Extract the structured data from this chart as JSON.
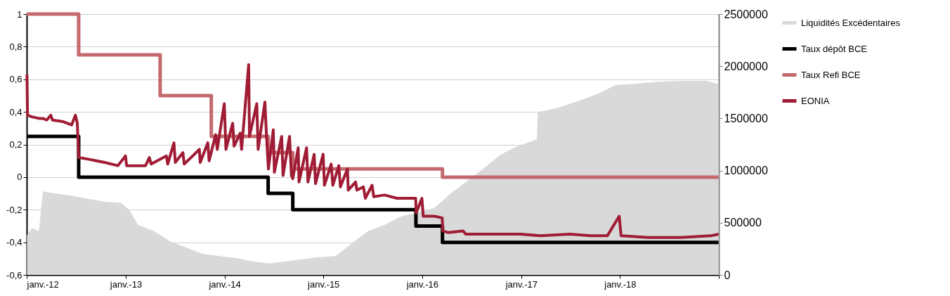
{
  "chart_data": {
    "type": "line",
    "xlim": [
      "2012-01-01",
      "2019-01-01"
    ],
    "xticks": [
      {
        "value": "2012-01-01",
        "label": "janv.-12"
      },
      {
        "value": "2013-01-01",
        "label": "janv.-13"
      },
      {
        "value": "2014-01-01",
        "label": "janv.-14"
      },
      {
        "value": "2015-01-01",
        "label": "janv.-15"
      },
      {
        "value": "2016-01-01",
        "label": "janv.-16"
      },
      {
        "value": "2017-01-01",
        "label": "janv.-17"
      },
      {
        "value": "2018-01-01",
        "label": "janv.-18"
      },
      {
        "value": "2019-01-01",
        "label": null
      }
    ],
    "ylim": [
      -0.6,
      1
    ],
    "yticks": [
      {
        "value": -0.6,
        "label": "-0,6"
      },
      {
        "value": -0.4,
        "label": "-0,4"
      },
      {
        "value": -0.2,
        "label": "-0,2"
      },
      0,
      {
        "value": 0.2,
        "label": "0,2"
      },
      {
        "value": 0.4,
        "label": "0,4"
      },
      {
        "value": 0.6,
        "label": "0,6"
      },
      {
        "value": 0.8,
        "label": "0,8"
      },
      1
    ],
    "y2lim": [
      0,
      2500000
    ],
    "y2ticks": [
      0,
      500000,
      1000000,
      1500000,
      2000000,
      2500000
    ],
    "grid": "y",
    "legend": "right",
    "series": [
      {
        "name": "Liquidités Excédentaires",
        "type": "area",
        "axis": "y2",
        "color": "#d9d9d9",
        "x": [
          "2012-01-02",
          "2012-01-20",
          "2012-02-15",
          "2012-03-01",
          "2012-04-15",
          "2012-06-15",
          "2012-08-15",
          "2012-10-15",
          "2012-12-15",
          "2013-01-15",
          "2013-02-15",
          "2013-04-15",
          "2013-06-15",
          "2013-08-15",
          "2013-10-15",
          "2013-12-15",
          "2014-02-15",
          "2014-04-15",
          "2014-06-15",
          "2014-08-15",
          "2014-10-15",
          "2014-12-15",
          "2015-02-15",
          "2015-04-15",
          "2015-06-15",
          "2015-08-15",
          "2015-10-15",
          "2015-12-15",
          "2016-02-15",
          "2016-04-15",
          "2016-06-15",
          "2016-08-15",
          "2016-10-15",
          "2016-12-15",
          "2017-02-28",
          "2017-03-03",
          "2017-05-15",
          "2017-08-15",
          "2017-10-15",
          "2017-12-15",
          "2018-02-15",
          "2018-05-15",
          "2018-08-15",
          "2018-11-15",
          "2018-12-31"
        ],
        "values": [
          380000,
          450000,
          420000,
          800000,
          780000,
          760000,
          730000,
          700000,
          690000,
          620000,
          480000,
          420000,
          320000,
          260000,
          200000,
          180000,
          160000,
          130000,
          110000,
          130000,
          150000,
          170000,
          180000,
          300000,
          420000,
          480000,
          560000,
          600000,
          640000,
          780000,
          900000,
          1020000,
          1150000,
          1230000,
          1300000,
          1560000,
          1600000,
          1680000,
          1740000,
          1820000,
          1830000,
          1850000,
          1860000,
          1860000,
          1830000
        ]
      },
      {
        "name": "Taux dépôt BCE",
        "type": "step",
        "color": "#000000",
        "x": [
          "2012-01-01",
          "2012-07-11",
          "2014-06-11",
          "2014-09-10",
          "2015-12-09",
          "2016-03-16",
          "2018-12-31"
        ],
        "values": [
          0.25,
          0,
          -0.1,
          -0.2,
          -0.3,
          -0.4,
          -0.4
        ]
      },
      {
        "name": "Taux Refi BCE",
        "type": "step",
        "color": "#c46a6e",
        "x": [
          "2012-01-01",
          "2012-07-11",
          "2013-05-08",
          "2013-11-13",
          "2014-06-11",
          "2014-09-10",
          "2016-03-16",
          "2018-12-31"
        ],
        "values": [
          1,
          0.75,
          0.5,
          0.25,
          0.15,
          0.05,
          0,
          0
        ]
      },
      {
        "name": "EONIA",
        "color": "#a01c35",
        "x": [
          "2012-01-02",
          "2012-01-04",
          "2012-01-20",
          "2012-02-15",
          "2012-03-01",
          "2012-03-15",
          "2012-03-30",
          "2012-04-05",
          "2012-05-15",
          "2012-06-15",
          "2012-06-29",
          "2012-07-06",
          "2012-07-11",
          "2012-08-15",
          "2012-09-15",
          "2012-10-15",
          "2012-12-03",
          "2012-12-31",
          "2013-01-04",
          "2013-03-15",
          "2013-03-29",
          "2013-04-05",
          "2013-05-31",
          "2013-06-05",
          "2013-06-28",
          "2013-07-03",
          "2013-07-31",
          "2013-08-05",
          "2013-09-30",
          "2013-10-03",
          "2013-10-31",
          "2013-11-05",
          "2013-11-29",
          "2013-12-05",
          "2013-12-31",
          "2014-01-06",
          "2014-01-31",
          "2014-02-05",
          "2014-02-28",
          "2014-03-05",
          "2014-03-31",
          "2014-04-03",
          "2014-04-30",
          "2014-05-05",
          "2014-05-30",
          "2014-06-05",
          "2014-06-12",
          "2014-06-30",
          "2014-07-04",
          "2014-07-31",
          "2014-08-05",
          "2014-08-29",
          "2014-09-05",
          "2014-09-10",
          "2014-09-30",
          "2014-10-03",
          "2014-10-31",
          "2014-11-05",
          "2014-11-28",
          "2014-12-03",
          "2014-12-31",
          "2015-01-05",
          "2015-01-30",
          "2015-02-05",
          "2015-02-27",
          "2015-03-05",
          "2015-03-31",
          "2015-04-03",
          "2015-04-30",
          "2015-05-05",
          "2015-05-29",
          "2015-06-05",
          "2015-06-30",
          "2015-07-06",
          "2015-08-15",
          "2015-09-30",
          "2015-11-15",
          "2015-12-08",
          "2015-12-10",
          "2015-12-31",
          "2016-01-05",
          "2016-02-15",
          "2016-03-15",
          "2016-03-17",
          "2016-04-05",
          "2016-05-31",
          "2016-06-10",
          "2016-09-15",
          "2016-12-30",
          "2017-03-15",
          "2017-06-30",
          "2017-09-15",
          "2017-11-15",
          "2017-12-29",
          "2018-01-05",
          "2018-04-15",
          "2018-08-15",
          "2018-12-03",
          "2018-12-31"
        ],
        "values": [
          0.63,
          0.38,
          0.37,
          0.36,
          0.36,
          0.35,
          0.38,
          0.35,
          0.34,
          0.32,
          0.38,
          0.33,
          0.12,
          0.11,
          0.1,
          0.09,
          0.07,
          0.13,
          0.07,
          0.07,
          0.12,
          0.08,
          0.13,
          0.08,
          0.21,
          0.09,
          0.15,
          0.08,
          0.17,
          0.09,
          0.21,
          0.1,
          0.26,
          0.17,
          0.45,
          0.17,
          0.33,
          0.19,
          0.27,
          0.17,
          0.69,
          0.25,
          0.45,
          0.17,
          0.46,
          0.25,
          0.05,
          0.29,
          0.03,
          0.25,
          0.01,
          0.25,
          0.01,
          -0.01,
          0.18,
          -0.03,
          0.18,
          -0.03,
          0.14,
          -0.04,
          0.14,
          -0.05,
          0.08,
          -0.05,
          0.07,
          -0.06,
          0.05,
          -0.08,
          -0.03,
          -0.08,
          -0.06,
          -0.13,
          -0.05,
          -0.12,
          -0.11,
          -0.13,
          -0.13,
          -0.13,
          -0.22,
          -0.13,
          -0.24,
          -0.24,
          -0.25,
          -0.33,
          -0.34,
          -0.33,
          -0.35,
          -0.35,
          -0.35,
          -0.36,
          -0.35,
          -0.36,
          -0.36,
          -0.24,
          -0.36,
          -0.37,
          -0.37,
          -0.36,
          -0.35
        ]
      }
    ]
  }
}
